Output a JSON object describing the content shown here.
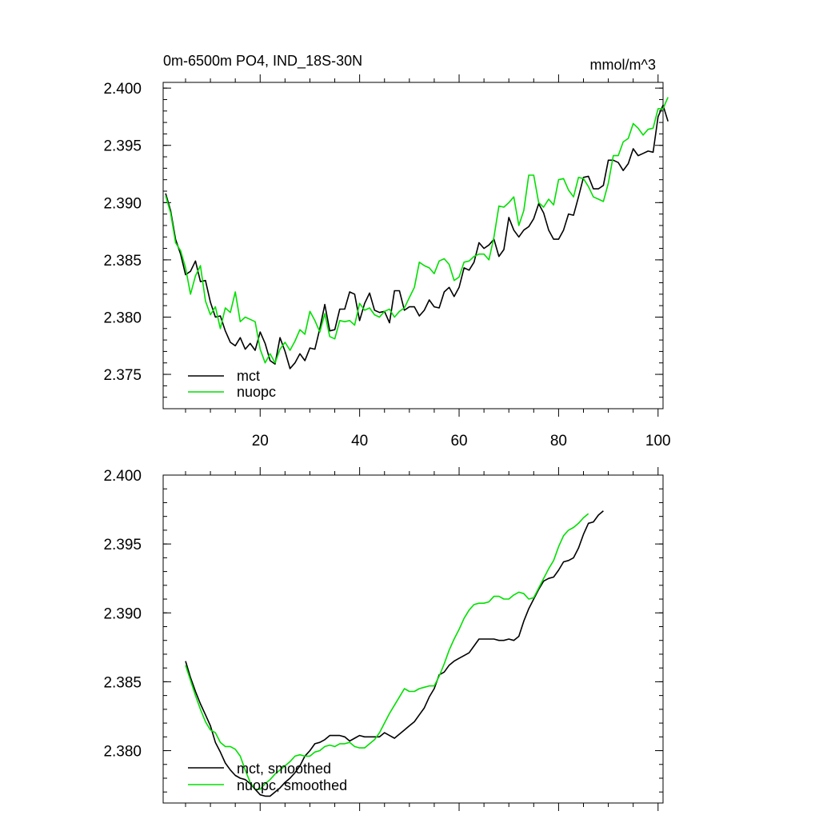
{
  "chart_data": [
    {
      "type": "line",
      "title_left": "0m-6500m PO4, IND_18S-30N",
      "title_right": "mmol/m^3",
      "xlim": [
        0.5,
        101
      ],
      "ylim": [
        2.372,
        2.4005
      ],
      "x_ticks": [
        20,
        40,
        60,
        80,
        100
      ],
      "x_tick_labels": [
        "20",
        "40",
        "60",
        "80",
        "100"
      ],
      "y_ticks": [
        2.375,
        2.38,
        2.385,
        2.39,
        2.395,
        2.4
      ],
      "y_tick_labels": [
        "2.375",
        "2.380",
        "2.385",
        "2.390",
        "2.395",
        "2.400"
      ],
      "x_start": 1,
      "series": [
        {
          "name": "mct",
          "color": "#000000",
          "values": [
            2.3908,
            2.3893,
            2.3868,
            2.3855,
            2.3837,
            2.384,
            2.3849,
            2.3831,
            2.3832,
            2.3813,
            2.38,
            2.3801,
            2.3788,
            2.3778,
            2.3775,
            2.3782,
            2.3772,
            2.3777,
            2.3771,
            2.3787,
            2.3777,
            2.3762,
            2.3759,
            2.3782,
            2.377,
            2.3755,
            2.376,
            2.3768,
            2.3762,
            2.3773,
            2.3772,
            2.379,
            2.3811,
            2.3788,
            2.3789,
            2.3807,
            2.3807,
            2.3822,
            2.382,
            2.3797,
            2.3812,
            2.3821,
            2.3806,
            2.3804,
            2.3805,
            2.3795,
            2.3823,
            2.3823,
            2.3806,
            2.3809,
            2.3809,
            2.3801,
            2.3806,
            2.3815,
            2.3809,
            2.3808,
            2.3822,
            2.3826,
            2.3818,
            2.3826,
            2.3843,
            2.3841,
            2.3848,
            2.3865,
            2.386,
            2.3863,
            2.3868,
            2.3853,
            2.3859,
            2.3887,
            2.3876,
            2.387,
            2.3876,
            2.3879,
            2.3886,
            2.3899,
            2.3891,
            2.3876,
            2.3868,
            2.3868,
            2.3876,
            2.389,
            2.3889,
            2.3905,
            2.3922,
            2.3923,
            2.3912,
            2.3912,
            2.3915,
            2.3937,
            2.3937,
            2.3935,
            2.3928,
            2.3934,
            2.3947,
            2.3941,
            2.3943,
            2.3945,
            2.3944,
            2.3975,
            2.3985,
            2.3971
          ]
        },
        {
          "name": "nuopc",
          "color": "#00e000",
          "values": [
            2.3906,
            2.3891,
            2.3865,
            2.3858,
            2.3843,
            2.382,
            2.3836,
            2.3845,
            2.3814,
            2.3802,
            2.3809,
            2.379,
            2.3808,
            2.3804,
            2.3822,
            2.3796,
            2.38,
            2.3798,
            2.3796,
            2.3772,
            2.376,
            2.3768,
            2.376,
            2.3772,
            2.3778,
            2.3771,
            2.3779,
            2.3789,
            2.3785,
            2.3805,
            2.3797,
            2.3787,
            2.3803,
            2.3783,
            2.3781,
            2.3797,
            2.3796,
            2.3797,
            2.3793,
            2.3812,
            2.3806,
            2.3808,
            2.3802,
            2.38,
            2.3805,
            2.3807,
            2.38,
            2.3805,
            2.3808,
            2.3817,
            2.3826,
            2.3848,
            2.3845,
            2.3843,
            2.3838,
            2.3849,
            2.3851,
            2.3846,
            2.3832,
            2.3835,
            2.3848,
            2.3849,
            2.3853,
            2.3855,
            2.3855,
            2.385,
            2.387,
            2.3897,
            2.3896,
            2.39,
            2.3905,
            2.388,
            2.3893,
            2.3924,
            2.3924,
            2.39,
            2.3896,
            2.3903,
            2.3898,
            2.392,
            2.3921,
            2.3911,
            2.3905,
            2.3922,
            2.3921,
            2.3914,
            2.3905,
            2.3903,
            2.3901,
            2.3917,
            2.3941,
            2.3941,
            2.3953,
            2.3956,
            2.3969,
            2.3965,
            2.3959,
            2.3964,
            2.3965,
            2.3982,
            2.3982,
            2.3992
          ]
        }
      ]
    },
    {
      "type": "line",
      "xlim": [
        0.5,
        101
      ],
      "ylim": [
        2.3762,
        2.4
      ],
      "x_ticks": [
        20,
        40,
        60,
        80,
        100
      ],
      "y_ticks": [
        2.38,
        2.385,
        2.39,
        2.395,
        2.4
      ],
      "y_tick_labels": [
        "2.380",
        "2.385",
        "2.390",
        "2.395",
        "2.400"
      ],
      "x_start": 5,
      "series": [
        {
          "name": "mct, smoothed",
          "color": "#000000",
          "values": [
            2.3865,
            2.3853,
            2.3843,
            2.3834,
            2.3826,
            2.3818,
            2.3806,
            2.3799,
            2.3791,
            2.3786,
            2.3782,
            2.378,
            2.3779,
            2.3776,
            2.3772,
            2.3768,
            2.3767,
            2.3767,
            2.377,
            2.3773,
            2.3777,
            2.378,
            2.3784,
            2.3789,
            2.3796,
            2.38,
            2.3805,
            2.3806,
            2.3808,
            2.3811,
            2.3811,
            2.3811,
            2.381,
            2.3807,
            2.3809,
            2.3811,
            2.381,
            2.381,
            2.381,
            2.381,
            2.3813,
            2.3811,
            2.3809,
            2.3812,
            2.3815,
            2.3818,
            2.3821,
            2.3826,
            2.3831,
            2.3839,
            2.3845,
            2.3855,
            2.3857,
            2.3862,
            2.3865,
            2.3867,
            2.3869,
            2.3871,
            2.3876,
            2.3881,
            2.3881,
            2.3881,
            2.3881,
            2.388,
            2.388,
            2.3881,
            2.388,
            2.3883,
            2.3894,
            2.3903,
            2.391,
            2.3917,
            2.3923,
            2.3925,
            2.3926,
            2.3931,
            2.3937,
            2.3938,
            2.394,
            2.3947,
            2.3957,
            2.3965,
            2.3966,
            2.3971,
            2.3974
          ]
        },
        {
          "name": "nuopc, smoothed",
          "color": "#00e000",
          "values": [
            2.3862,
            2.3851,
            2.384,
            2.383,
            2.3821,
            2.3815,
            2.3813,
            2.3806,
            2.3803,
            2.3803,
            2.3801,
            2.3796,
            2.3786,
            2.3777,
            2.3772,
            2.3772,
            2.3776,
            2.3779,
            2.3783,
            2.3786,
            2.3789,
            2.3792,
            2.3796,
            2.3797,
            2.3796,
            2.3796,
            2.3799,
            2.38,
            2.3803,
            2.3804,
            2.3803,
            2.3805,
            2.3805,
            2.3806,
            2.3803,
            2.3802,
            2.3802,
            2.3805,
            2.3808,
            2.3813,
            2.382,
            2.3827,
            2.3833,
            2.3839,
            2.3845,
            2.3843,
            2.3843,
            2.3845,
            2.3846,
            2.3847,
            2.3847,
            2.3854,
            2.3863,
            2.3873,
            2.3881,
            2.3888,
            2.3896,
            2.3902,
            2.3906,
            2.3907,
            2.3907,
            2.3908,
            2.3912,
            2.3912,
            2.391,
            2.391,
            2.3913,
            2.3915,
            2.3914,
            2.391,
            2.3911,
            2.3918,
            2.3925,
            2.3932,
            2.3938,
            2.3948,
            2.3956,
            2.396,
            2.3962,
            2.3965,
            2.3969,
            2.3972
          ]
        }
      ]
    }
  ]
}
